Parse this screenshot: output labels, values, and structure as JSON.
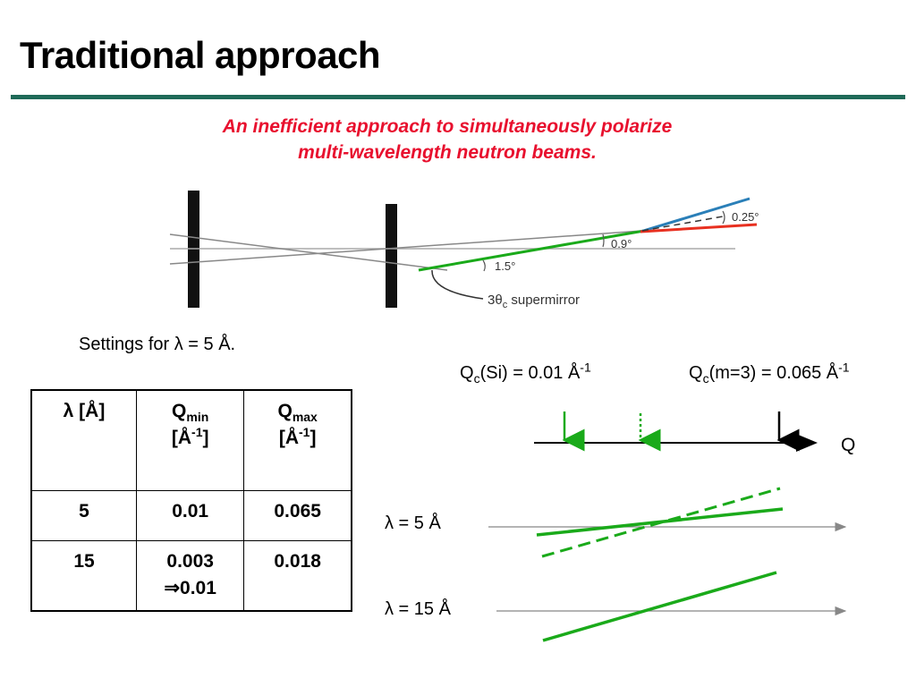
{
  "slide": {
    "title": "Traditional approach",
    "subtitle_line1": "An inefficient approach to simultaneously polarize",
    "subtitle_line2": "multi-wavelength neutron beams."
  },
  "diagram": {
    "angle_small": "0.25°",
    "angle_mid": "0.9°",
    "angle_large": "1.5°",
    "mirror_label": "3θ",
    "mirror_label_sub": "c",
    "mirror_label_rest": " supermirror"
  },
  "settings": {
    "prefix": "Settings for ",
    "lambda": "λ",
    "suffix": " = 5 Å."
  },
  "q_axis": {
    "qc_si_prefix": "Q",
    "qc_si_sub": "c",
    "qc_si_mid": "(Si) = 0.01 Å",
    "qc_si_sup": "-1",
    "qc_m3_prefix": "Q",
    "qc_m3_sub": "c",
    "qc_m3_mid": "(m=3) = 0.065 Å",
    "qc_m3_sup": "-1",
    "axis_label": "Q"
  },
  "wavelengths": {
    "lam5": "λ = 5 Å",
    "lam15": "λ = 15 Å"
  },
  "table": {
    "h_lambda": "λ [Å]",
    "h_qmin_q": "Q",
    "h_qmin_sub": "min",
    "h_qmin_unit_open": "[Å",
    "h_qmin_unit_sup": "-1",
    "h_qmin_unit_close": "]",
    "h_qmax_q": "Q",
    "h_qmax_sub": "max",
    "h_qmax_unit_open": "[Å",
    "h_qmax_unit_sup": "-1",
    "h_qmax_unit_close": "]",
    "rows": [
      {
        "lambda": "5",
        "qmin": "0.01",
        "qmin_extra": "",
        "qmax": "0.065"
      },
      {
        "lambda": "15",
        "qmin": "0.003",
        "qmin_extra": "⇒0.01",
        "qmax": "0.018"
      }
    ]
  },
  "colors": {
    "title_rule": "#1f6a58",
    "subtitle": "#e8102e",
    "green": "#1aaa1a",
    "blue": "#2a7fb8",
    "red": "#e83020"
  }
}
